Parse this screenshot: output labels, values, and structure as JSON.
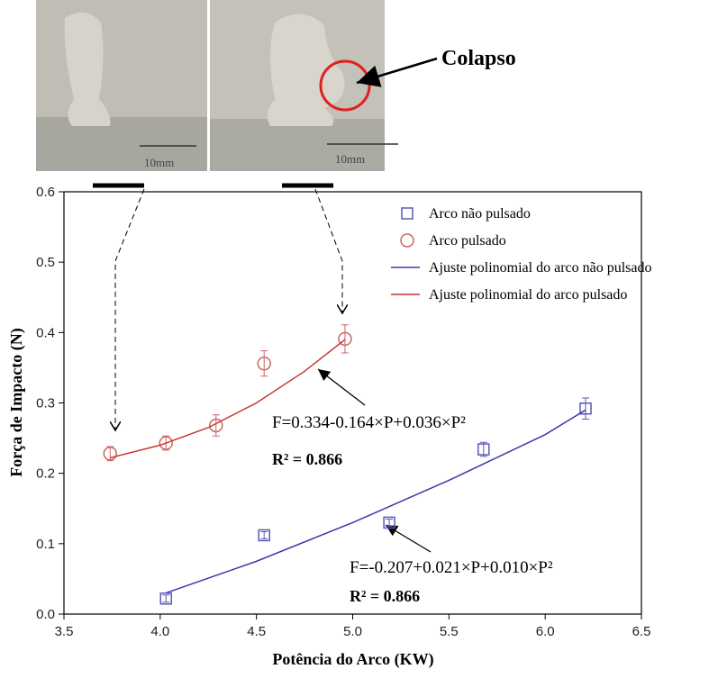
{
  "chart_data": {
    "type": "scatter",
    "xlabel": "Potência do Arco (KW)",
    "ylabel": "Força de Impacto (N)",
    "xlim": [
      3.5,
      6.5
    ],
    "ylim": [
      0,
      0.6
    ],
    "xticks": [
      {
        "value": 3.5,
        "label": "3.5"
      },
      {
        "value": 4,
        "label": "4.0"
      },
      {
        "value": 4.5,
        "label": "4.5"
      },
      {
        "value": 5,
        "label": "5.0"
      },
      {
        "value": 5.5,
        "label": "5.5"
      },
      {
        "value": 6,
        "label": "6.0"
      },
      {
        "value": 6.5,
        "label": "6.5"
      }
    ],
    "yticks": [
      {
        "value": 0,
        "label": "0.0"
      },
      {
        "value": 0.1,
        "label": "0.1"
      },
      {
        "value": 0.2,
        "label": "0.2"
      },
      {
        "value": 0.3,
        "label": "0.3"
      },
      {
        "value": 0.4,
        "label": "0.4"
      },
      {
        "value": 0.5,
        "label": "0.5"
      },
      {
        "value": 0.6,
        "label": "0.6"
      }
    ],
    "legend": "upper right",
    "series": [
      {
        "name": "Arco não pulsado",
        "marker": "square",
        "color": "#5a5ab8",
        "x": [
          4.03,
          4.54,
          5.19,
          5.68,
          6.21
        ],
        "values": [
          0.022,
          0.112,
          0.13,
          0.234,
          0.292
        ],
        "errors": [
          0.005,
          0.005,
          0.005,
          0.01,
          0.015
        ]
      },
      {
        "name": "Arco pulsado",
        "marker": "circle",
        "color": "#cc6666",
        "x": [
          3.74,
          4.03,
          4.29,
          4.54,
          4.96
        ],
        "values": [
          0.228,
          0.243,
          0.268,
          0.356,
          0.391
        ],
        "errors": [
          0.01,
          0.01,
          0.015,
          0.018,
          0.02
        ]
      },
      {
        "name": "Ajuste polinomial do arco não pulsado",
        "marker": "line",
        "color": "#3a3aaa",
        "x": [
          4.03,
          4.5,
          5,
          5.5,
          6,
          6.21
        ],
        "values": [
          0.03,
          0.075,
          0.13,
          0.19,
          0.255,
          0.29
        ]
      },
      {
        "name": "Ajuste polinomial do arco pulsado",
        "marker": "line",
        "color": "#cc3333",
        "x": [
          3.74,
          4,
          4.25,
          4.5,
          4.75,
          4.96
        ],
        "values": [
          0.222,
          0.24,
          0.265,
          0.3,
          0.345,
          0.39
        ]
      }
    ],
    "annotations": [
      {
        "text": "F=0.334-0.164×P+0.036×P²"
      },
      {
        "text": "R² = 0.866"
      },
      {
        "text": "F=-0.207+0.021×P+0.010×P²"
      },
      {
        "text": "R² = 0.866"
      },
      {
        "text": "Colapso"
      }
    ]
  },
  "photos": [
    {
      "scale_label": "10mm"
    },
    {
      "scale_label": "10mm"
    }
  ]
}
